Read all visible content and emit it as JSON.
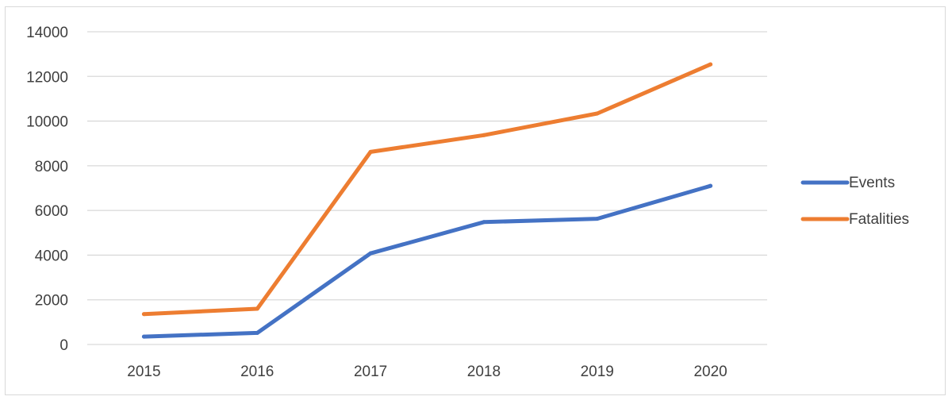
{
  "chart_data": {
    "type": "line",
    "title": "",
    "xlabel": "",
    "ylabel": "",
    "categories": [
      "2015",
      "2016",
      "2017",
      "2018",
      "2019",
      "2020"
    ],
    "ylim": [
      0,
      14000
    ],
    "yticks": [
      0,
      2000,
      4000,
      6000,
      8000,
      10000,
      12000,
      14000
    ],
    "grid": true,
    "legend": "right",
    "series": [
      {
        "name": "Events",
        "color": "#4472c4",
        "values": [
          350,
          520,
          4080,
          5480,
          5630,
          7100
        ]
      },
      {
        "name": "Fatalities",
        "color": "#ed7d31",
        "values": [
          1360,
          1600,
          8620,
          9370,
          10340,
          12540
        ]
      }
    ]
  }
}
